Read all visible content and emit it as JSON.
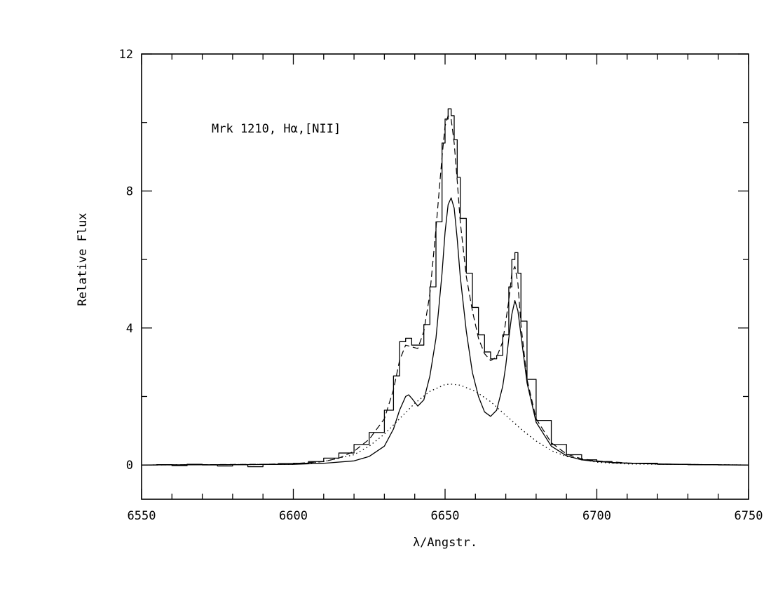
{
  "chart_data": {
    "type": "line",
    "annotation": "Mrk 1210, Hα,[NII]",
    "xlabel": "λ/Angstr.",
    "ylabel": "Relative Flux",
    "xlim": [
      6550,
      6750
    ],
    "ylim": [
      -1,
      12
    ],
    "xticks": [
      6550,
      6600,
      6650,
      6700,
      6750
    ],
    "xtick_labels": [
      "6550",
      "6600",
      "6650",
      "6700",
      "6750"
    ],
    "yticks": [
      0,
      4,
      8,
      12
    ],
    "ytick_labels": [
      "0",
      "4",
      "8",
      "12"
    ],
    "grid": false,
    "legend": "none",
    "color": "#000000",
    "series": [
      {
        "style": "histogram",
        "x": [
          6550,
          6555,
          6560,
          6565,
          6570,
          6575,
          6580,
          6585,
          6590,
          6595,
          6600,
          6605,
          6610,
          6615,
          6620,
          6625,
          6630,
          6633,
          6635,
          6637,
          6639,
          6641,
          6643,
          6645,
          6647,
          6649,
          6650,
          6651,
          6652,
          6653,
          6654,
          6655,
          6657,
          6659,
          6661,
          6663,
          6665,
          6667,
          6669,
          6671,
          6672,
          6673,
          6674,
          6675,
          6677,
          6680,
          6685,
          6690,
          6695,
          6700,
          6705,
          6710,
          6720,
          6730,
          6740,
          6750
        ],
        "y": [
          0.0,
          0.01,
          -0.02,
          0.02,
          0.0,
          -0.03,
          0.01,
          -0.05,
          0.02,
          0.04,
          0.05,
          0.1,
          0.2,
          0.35,
          0.6,
          0.95,
          1.6,
          2.6,
          3.6,
          3.7,
          3.5,
          3.5,
          4.1,
          5.2,
          7.1,
          9.4,
          10.1,
          10.4,
          10.2,
          9.5,
          8.4,
          7.2,
          5.6,
          4.6,
          3.8,
          3.3,
          3.1,
          3.2,
          3.8,
          5.2,
          6.0,
          6.2,
          5.6,
          4.2,
          2.5,
          1.3,
          0.6,
          0.3,
          0.15,
          0.1,
          0.06,
          0.05,
          0.02,
          0.01,
          0.0,
          0.0
        ]
      },
      {
        "style": "dashed",
        "x": [
          6550,
          6570,
          6590,
          6600,
          6610,
          6615,
          6620,
          6625,
          6630,
          6633,
          6635,
          6637,
          6639,
          6641,
          6643,
          6645,
          6647,
          6649,
          6650,
          6651,
          6652,
          6653,
          6654,
          6655,
          6657,
          6659,
          6661,
          6663,
          6665,
          6667,
          6669,
          6671,
          6672,
          6673,
          6674,
          6675,
          6677,
          6680,
          6685,
          6690,
          6695,
          6700,
          6710,
          6720,
          6735,
          6750
        ],
        "y": [
          0.0,
          0.01,
          0.02,
          0.04,
          0.1,
          0.2,
          0.4,
          0.75,
          1.35,
          2.2,
          3.05,
          3.5,
          3.45,
          3.4,
          3.9,
          5.0,
          6.9,
          9.0,
          9.9,
          10.2,
          10.1,
          9.4,
          8.3,
          7.1,
          5.5,
          4.5,
          3.7,
          3.25,
          3.05,
          3.15,
          3.6,
          4.8,
          5.6,
          5.8,
          5.3,
          4.1,
          2.5,
          1.35,
          0.65,
          0.32,
          0.18,
          0.12,
          0.06,
          0.03,
          0.01,
          0.0
        ]
      },
      {
        "style": "solid",
        "x": [
          6550,
          6580,
          6600,
          6610,
          6620,
          6625,
          6630,
          6633,
          6635,
          6637,
          6638,
          6639,
          6641,
          6643,
          6645,
          6647,
          6649,
          6650,
          6651,
          6652,
          6653,
          6654,
          6655,
          6657,
          6659,
          6661,
          6663,
          6665,
          6667,
          6669,
          6670,
          6671,
          6672,
          6673,
          6674,
          6675,
          6677,
          6680,
          6685,
          6690,
          6695,
          6700,
          6710,
          6720,
          6735,
          6750
        ],
        "y": [
          0.0,
          0.01,
          0.02,
          0.05,
          0.12,
          0.25,
          0.55,
          1.05,
          1.6,
          2.0,
          2.05,
          1.95,
          1.72,
          1.9,
          2.6,
          3.7,
          5.6,
          6.8,
          7.6,
          7.8,
          7.5,
          6.6,
          5.5,
          3.9,
          2.7,
          2.0,
          1.55,
          1.42,
          1.6,
          2.3,
          2.9,
          3.7,
          4.4,
          4.8,
          4.5,
          3.8,
          2.4,
          1.25,
          0.55,
          0.27,
          0.15,
          0.1,
          0.05,
          0.03,
          0.01,
          0.0
        ]
      },
      {
        "style": "dotted",
        "x": [
          6550,
          6600,
          6610,
          6620,
          6625,
          6630,
          6635,
          6640,
          6645,
          6650,
          6652,
          6655,
          6660,
          6665,
          6670,
          6675,
          6680,
          6685,
          6690,
          6700,
          6710,
          6750
        ],
        "y": [
          0.0,
          0.02,
          0.1,
          0.3,
          0.55,
          0.9,
          1.35,
          1.8,
          2.15,
          2.35,
          2.36,
          2.33,
          2.15,
          1.85,
          1.45,
          1.05,
          0.7,
          0.42,
          0.25,
          0.08,
          0.03,
          0.0
        ]
      }
    ]
  }
}
